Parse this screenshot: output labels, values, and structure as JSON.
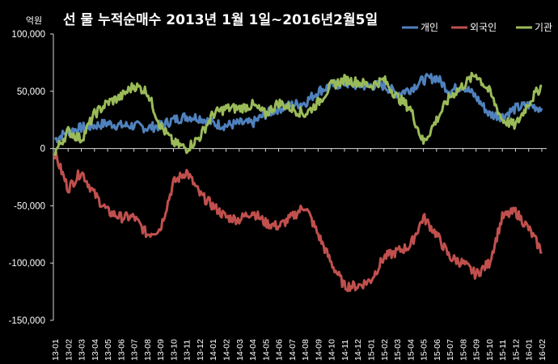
{
  "unit_label": "억원",
  "title": "선 물 누적순매수 2013년 1월 1일~2016년2월5일",
  "chart_data": {
    "type": "line",
    "title": "선 물 누적순매수 2013년 1월 1일~2016년2월5일",
    "ylabel": "억원",
    "xlabel": "",
    "ylim": [
      -150000,
      100000
    ],
    "yticks": [
      100000,
      50000,
      0,
      -50000,
      -100000,
      -150000
    ],
    "ytick_labels": [
      "100,000",
      "50,000",
      "0",
      "-50,000",
      "-100,000",
      "-150,000"
    ],
    "grid": false,
    "legend_position": "top-right",
    "x": [
      "13-01",
      "13-02",
      "13-03",
      "13-04",
      "13-05",
      "13-06",
      "13-07",
      "13-08",
      "13-09",
      "13-10",
      "13-11",
      "13-12",
      "14-01",
      "14-02",
      "14-03",
      "14-04",
      "14-05",
      "14-06",
      "14-07",
      "14-08",
      "14-09",
      "14-10",
      "14-11",
      "14-12",
      "15-01",
      "15-02",
      "15-03",
      "15-04",
      "15-05",
      "15-06",
      "15-07",
      "15-08",
      "15-09",
      "15-10",
      "15-11",
      "15-12",
      "16-01",
      "16-02"
    ],
    "series": [
      {
        "name": "개인",
        "color": "#4f81bd",
        "values": [
          8000,
          15000,
          18000,
          20000,
          22000,
          20000,
          20000,
          18000,
          20000,
          25000,
          28000,
          27000,
          22000,
          20000,
          22000,
          22000,
          30000,
          35000,
          38000,
          40000,
          50000,
          55000,
          57000,
          55000,
          55000,
          55000,
          48000,
          52000,
          60000,
          62000,
          50000,
          55000,
          45000,
          30000,
          28000,
          35000,
          38000,
          35000
        ]
      },
      {
        "name": "외국인",
        "color": "#c0504d",
        "values": [
          -5000,
          -35000,
          -20000,
          -40000,
          -55000,
          -60000,
          -60000,
          -75000,
          -70000,
          -30000,
          -20000,
          -40000,
          -50000,
          -60000,
          -62000,
          -55000,
          -65000,
          -68000,
          -60000,
          -50000,
          -75000,
          -100000,
          -120000,
          -120000,
          -115000,
          -95000,
          -90000,
          -85000,
          -60000,
          -75000,
          -95000,
          -100000,
          -110000,
          -100000,
          -60000,
          -55000,
          -70000,
          -90000
        ]
      },
      {
        "name": "기관",
        "color": "#9bbb59",
        "values": [
          -3000,
          15000,
          8000,
          30000,
          40000,
          45000,
          55000,
          50000,
          20000,
          5000,
          0,
          10000,
          30000,
          35000,
          35000,
          38000,
          30000,
          40000,
          35000,
          30000,
          40000,
          55000,
          60000,
          58000,
          55000,
          60000,
          45000,
          35000,
          5000,
          25000,
          45000,
          55000,
          65000,
          50000,
          25000,
          20000,
          40000,
          55000
        ]
      }
    ]
  }
}
